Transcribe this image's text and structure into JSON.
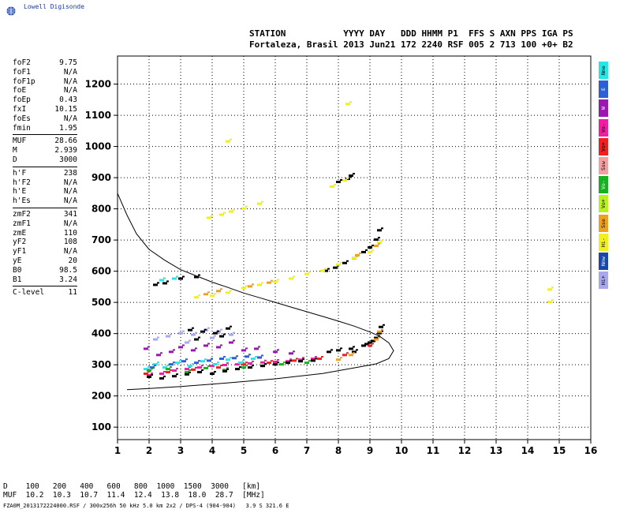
{
  "logo_text": "Lowell Digisonde",
  "header": {
    "line1": "STATION           YYYY DAY   DDD HHMM P1  FFS S AXN PPS IGA PS",
    "line2": "Fortaleza, Brasil 2013 Jun21 172 2240 RSF 005 2 713 100 +0+ B2"
  },
  "params": [
    [
      {
        "label": "foF2",
        "value": "9.75"
      },
      {
        "label": "foF1",
        "value": "N/A"
      },
      {
        "label": "foF1p",
        "value": "N/A"
      },
      {
        "label": "foE",
        "value": "N/A"
      },
      {
        "label": "foEp",
        "value": "0.43"
      },
      {
        "label": "fxI",
        "value": "10.15"
      },
      {
        "label": "foEs",
        "value": "N/A"
      },
      {
        "label": "fmin",
        "value": "1.95"
      }
    ],
    [
      {
        "label": "MUF",
        "value": "28.66"
      },
      {
        "label": "M",
        "value": "2.939"
      },
      {
        "label": "D",
        "value": "3000"
      }
    ],
    [
      {
        "label": "h'F",
        "value": "238"
      },
      {
        "label": "h'F2",
        "value": "N/A"
      },
      {
        "label": "h'E",
        "value": "N/A"
      },
      {
        "label": "h'Es",
        "value": "N/A"
      }
    ],
    [
      {
        "label": "zmF2",
        "value": "341"
      },
      {
        "label": "zmF1",
        "value": "N/A"
      },
      {
        "label": "zmE",
        "value": "110"
      },
      {
        "label": "yF2",
        "value": "108"
      },
      {
        "label": "yF1",
        "value": "N/A"
      },
      {
        "label": "yE",
        "value": "20"
      },
      {
        "label": "B0",
        "value": "98.5"
      },
      {
        "label": "B1",
        "value": "3.24"
      }
    ],
    [
      {
        "label": "C-level",
        "value": "11"
      }
    ]
  ],
  "legend": [
    {
      "label": "Nne",
      "color": "#26e6e6"
    },
    {
      "label": "E",
      "color": "#2a5fd8"
    },
    {
      "label": "W",
      "color": "#9a18b0"
    },
    {
      "label": "Vo-",
      "color": "#ee1fa0"
    },
    {
      "label": "Vo+",
      "color": "#ee2020"
    },
    {
      "label": "Ssw",
      "color": "#f4a0a0"
    },
    {
      "label": "Vo-",
      "color": "#16b020"
    },
    {
      "label": "Vo+",
      "color": "#b8f020"
    },
    {
      "label": "Sse",
      "color": "#f0a020"
    },
    {
      "label": "Hi-",
      "color": "#f0f020"
    },
    {
      "label": "Nnw",
      "color": "#1848a8"
    },
    {
      "label": "Hi+",
      "color": "#a8a8ee"
    }
  ],
  "bottom": {
    "d_line": "D    100   200   400   600   800  1000  1500  3000   [km]",
    "muf_line": "MUF  10.2  10.3  10.7  11.4  12.4  13.8  18.0  28.7  [MHz]",
    "footer": "FZA0M_2013172224000.RSF / 300x256h 50 kHz 5.0 km 2x2 / DPS-4 (904-904)   3.9 S 321.6 E"
  },
  "chart_data": {
    "type": "scatter",
    "xlim": [
      1,
      16
    ],
    "ylim": [
      60,
      1290
    ],
    "xticks": [
      "1",
      "2",
      "3",
      "4",
      "5",
      "6",
      "7",
      "8",
      "9",
      "10",
      "11",
      "12",
      "13",
      "14",
      "15",
      "16"
    ],
    "yticks": [
      "100",
      "200",
      "300",
      "400",
      "500",
      "600",
      "700",
      "800",
      "900",
      "1000",
      "1100",
      "1200"
    ],
    "grid": true,
    "profile_curve": [
      [
        1.0,
        850
      ],
      [
        1.3,
        780
      ],
      [
        1.6,
        720
      ],
      [
        2.0,
        670
      ],
      [
        2.5,
        635
      ],
      [
        3.0,
        605
      ],
      [
        3.5,
        585
      ],
      [
        4.0,
        565
      ],
      [
        4.5,
        548
      ],
      [
        5.0,
        530
      ],
      [
        5.5,
        515
      ],
      [
        6.0,
        500
      ],
      [
        6.5,
        485
      ],
      [
        7.0,
        470
      ],
      [
        7.5,
        455
      ],
      [
        8.0,
        440
      ],
      [
        8.5,
        424
      ],
      [
        9.0,
        405
      ],
      [
        9.3,
        392
      ],
      [
        9.6,
        370
      ],
      [
        9.75,
        345
      ],
      [
        9.6,
        320
      ],
      [
        9.2,
        303
      ],
      [
        8.5,
        290
      ],
      [
        7.5,
        272
      ],
      [
        6.0,
        255
      ],
      [
        4.5,
        242
      ],
      [
        3.0,
        230
      ],
      [
        2.0,
        224
      ],
      [
        1.3,
        220
      ]
    ],
    "traces": [
      {
        "color": "#000000",
        "points": [
          [
            7.7,
            340
          ],
          [
            8.0,
            345
          ],
          [
            8.4,
            350
          ],
          [
            8.8,
            360
          ],
          [
            9.0,
            370
          ],
          [
            9.2,
            385
          ],
          [
            9.3,
            400
          ],
          [
            9.35,
            420
          ],
          [
            8.5,
            340
          ],
          [
            8.9,
            365
          ],
          [
            9.1,
            375
          ]
        ]
      },
      {
        "color": "#000000",
        "points": [
          [
            7.6,
            600
          ],
          [
            7.9,
            610
          ],
          [
            8.2,
            625
          ],
          [
            8.5,
            640
          ],
          [
            8.8,
            660
          ],
          [
            9.0,
            675
          ],
          [
            9.2,
            700
          ],
          [
            9.3,
            730
          ],
          [
            8.0,
            885
          ],
          [
            8.3,
            895
          ],
          [
            8.4,
            905
          ],
          [
            3.0,
            575
          ],
          [
            3.5,
            580
          ],
          [
            2.2,
            555
          ],
          [
            2.5,
            560
          ]
        ]
      },
      {
        "color": "#f0f020",
        "points": [
          [
            4.0,
            520
          ],
          [
            4.5,
            530
          ],
          [
            5.0,
            545
          ],
          [
            5.5,
            555
          ],
          [
            6.0,
            565
          ],
          [
            6.5,
            575
          ],
          [
            7.0,
            590
          ],
          [
            7.5,
            600
          ],
          [
            8.0,
            620
          ],
          [
            8.5,
            640
          ],
          [
            9.0,
            660
          ],
          [
            9.3,
            690
          ],
          [
            3.5,
            515
          ],
          [
            7.8,
            870
          ],
          [
            8.2,
            890
          ],
          [
            3.9,
            770
          ],
          [
            4.3,
            780
          ],
          [
            4.6,
            790
          ],
          [
            5.0,
            800
          ],
          [
            5.5,
            815
          ],
          [
            8.3,
            1135
          ],
          [
            4.5,
            1015
          ],
          [
            14.7,
            500
          ],
          [
            14.7,
            540
          ]
        ]
      },
      {
        "color": "#f0a020",
        "points": [
          [
            3.8,
            525
          ],
          [
            4.2,
            535
          ],
          [
            5.2,
            550
          ],
          [
            5.8,
            562
          ],
          [
            8.6,
            650
          ],
          [
            9.2,
            680
          ],
          [
            9.3,
            405
          ],
          [
            9.2,
            380
          ],
          [
            8.0,
            315
          ],
          [
            8.4,
            330
          ]
        ]
      },
      {
        "color": "#ee1fa0",
        "points": [
          [
            2.0,
            265
          ],
          [
            2.4,
            270
          ],
          [
            2.8,
            280
          ],
          [
            3.2,
            285
          ],
          [
            3.6,
            290
          ],
          [
            4.0,
            295
          ],
          [
            4.4,
            298
          ],
          [
            4.8,
            300
          ],
          [
            5.2,
            303
          ],
          [
            5.6,
            306
          ],
          [
            6.0,
            308
          ],
          [
            6.4,
            310
          ],
          [
            6.8,
            315
          ],
          [
            7.2,
            318
          ]
        ]
      },
      {
        "color": "#ee2020",
        "points": [
          [
            1.9,
            270
          ],
          [
            2.6,
            275
          ],
          [
            3.4,
            283
          ],
          [
            4.2,
            290
          ],
          [
            5.0,
            300
          ],
          [
            5.8,
            305
          ],
          [
            6.6,
            312
          ],
          [
            7.4,
            318
          ],
          [
            8.2,
            330
          ],
          [
            9.0,
            360
          ]
        ]
      },
      {
        "color": "#26e6e6",
        "points": [
          [
            1.9,
            285
          ],
          [
            2.2,
            300
          ],
          [
            2.5,
            290
          ],
          [
            2.9,
            305
          ],
          [
            3.3,
            295
          ],
          [
            3.7,
            310
          ],
          [
            4.1,
            300
          ],
          [
            4.5,
            315
          ],
          [
            4.9,
            305
          ],
          [
            5.3,
            318
          ],
          [
            2.8,
            575
          ],
          [
            2.4,
            570
          ]
        ]
      },
      {
        "color": "#2a5fd8",
        "points": [
          [
            2.1,
            290
          ],
          [
            2.7,
            300
          ],
          [
            3.1,
            310
          ],
          [
            3.5,
            305
          ],
          [
            3.9,
            312
          ],
          [
            4.3,
            318
          ],
          [
            4.7,
            320
          ],
          [
            5.1,
            325
          ],
          [
            5.5,
            322
          ]
        ]
      },
      {
        "color": "#9a18b0",
        "points": [
          [
            1.9,
            350
          ],
          [
            2.3,
            330
          ],
          [
            2.7,
            340
          ],
          [
            3.0,
            355
          ],
          [
            3.4,
            345
          ],
          [
            3.8,
            360
          ],
          [
            4.2,
            355
          ],
          [
            4.6,
            370
          ],
          [
            5.0,
            345
          ],
          [
            5.4,
            350
          ],
          [
            6.0,
            340
          ],
          [
            6.5,
            335
          ]
        ]
      },
      {
        "color": "#16b020",
        "points": [
          [
            2.0,
            280
          ],
          [
            2.6,
            285
          ],
          [
            3.2,
            275
          ],
          [
            3.8,
            288
          ],
          [
            4.4,
            282
          ],
          [
            5.0,
            290
          ],
          [
            5.6,
            295
          ],
          [
            6.2,
            300
          ],
          [
            7.0,
            305
          ]
        ]
      },
      {
        "color": "#a8a8ee",
        "points": [
          [
            2.2,
            380
          ],
          [
            2.6,
            390
          ],
          [
            3.0,
            400
          ],
          [
            3.4,
            395
          ],
          [
            3.8,
            410
          ],
          [
            4.2,
            405
          ],
          [
            4.6,
            395
          ],
          [
            3.2,
            370
          ],
          [
            4.0,
            385
          ]
        ]
      },
      {
        "color": "#000000",
        "points": [
          [
            2.0,
            260
          ],
          [
            2.4,
            255
          ],
          [
            2.8,
            262
          ],
          [
            3.2,
            268
          ],
          [
            3.6,
            275
          ],
          [
            4.0,
            270
          ],
          [
            4.4,
            278
          ],
          [
            4.8,
            285
          ],
          [
            5.2,
            290
          ],
          [
            5.6,
            295
          ],
          [
            6.0,
            300
          ],
          [
            6.4,
            305
          ],
          [
            6.8,
            310
          ],
          [
            7.2,
            312
          ],
          [
            3.3,
            410
          ],
          [
            3.7,
            405
          ],
          [
            4.1,
            400
          ],
          [
            4.5,
            415
          ],
          [
            3.5,
            380
          ],
          [
            4.3,
            390
          ]
        ]
      }
    ]
  }
}
